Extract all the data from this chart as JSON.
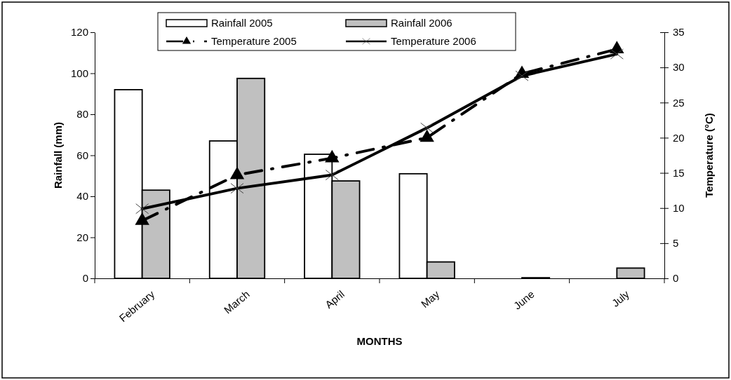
{
  "chart_data": {
    "type": "bar",
    "xlabel": "MONTHS",
    "ylabel": "Rainfall (mm)",
    "y2label": "Temperature (°C)",
    "categories": [
      "February",
      "March",
      "April",
      "May",
      "June",
      "July"
    ],
    "series": [
      {
        "name": "Rainfall 2005",
        "color": "#ffffff",
        "values": [
          92,
          67,
          60.5,
          51,
          0,
          0
        ]
      },
      {
        "name": "Rainfall 2006",
        "color": "#c0c0c0",
        "values": [
          43,
          97.5,
          47.5,
          8,
          0.3,
          5
        ]
      },
      {
        "name": "Temperature 2005",
        "type": "line",
        "axis": "y2",
        "color": "#000000",
        "marker": "triangle",
        "line_style": "dashdot",
        "values": [
          8.2,
          14.7,
          17.1,
          20,
          29.1,
          32.6
        ]
      },
      {
        "name": "Temperature 2006",
        "type": "line",
        "axis": "y2",
        "color": "#000000",
        "marker": "cross",
        "line_style": "solid",
        "values": [
          9.9,
          12.8,
          14.7,
          21.4,
          28.8,
          31.9
        ]
      }
    ],
    "ylim": [
      0,
      120
    ],
    "yticks": [
      0,
      20,
      40,
      60,
      80,
      100,
      120
    ],
    "y2lim": [
      0,
      35
    ],
    "y2ticks": [
      0,
      5,
      10,
      15,
      20,
      25,
      30,
      35
    ],
    "legend": "top",
    "grid": false
  }
}
